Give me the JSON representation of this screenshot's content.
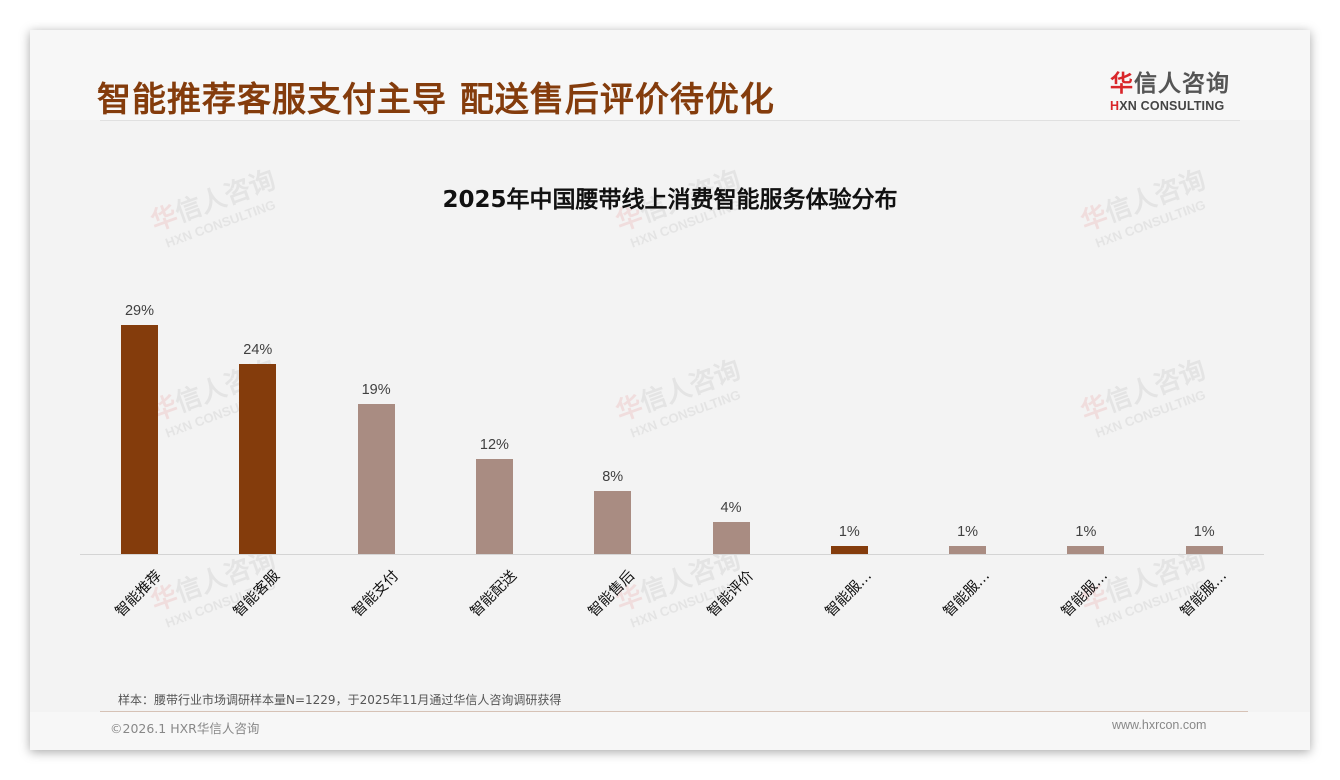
{
  "header": {
    "title": "智能推荐客服支付主导 配送售后评价待优化",
    "logo": {
      "cn_red": "华",
      "cn_rest": "信人咨询",
      "en_mark": "H",
      "en_rest": "XN CONSULTING"
    }
  },
  "watermark": {
    "cn_red": "华",
    "cn_rest": "信人咨询",
    "en": "HXN CONSULTING"
  },
  "chart_data": {
    "type": "bar",
    "title": "2025年中国腰带线上消费智能服务体验分布",
    "categories": [
      "智能推荐",
      "智能客服",
      "智能支付",
      "智能配送",
      "智能售后",
      "智能评价",
      "智能服…",
      "智能服…",
      "智能服…",
      "智能服…"
    ],
    "values": [
      29,
      24,
      19,
      12,
      8,
      4,
      1,
      1,
      1,
      1
    ],
    "labels": [
      "29%",
      "24%",
      "19%",
      "12%",
      "8%",
      "4%",
      "1%",
      "1%",
      "1%",
      "1%"
    ],
    "highlight": [
      true,
      true,
      false,
      false,
      false,
      false,
      true,
      false,
      false,
      false
    ],
    "colors": {
      "highlight": "#843c0c",
      "normal": "#a98c82"
    },
    "xlabel": "",
    "ylabel": "",
    "ylim": [
      0,
      29
    ],
    "unit": "%",
    "grid": false,
    "legend": null
  },
  "footer": {
    "source": "样本：腰带行业市场调研样本量N=1229，于2025年11月通过华信人咨询调研获得",
    "copyright": "©2026.1 HXR华信人咨询",
    "website": "www.hxrcon.com"
  }
}
